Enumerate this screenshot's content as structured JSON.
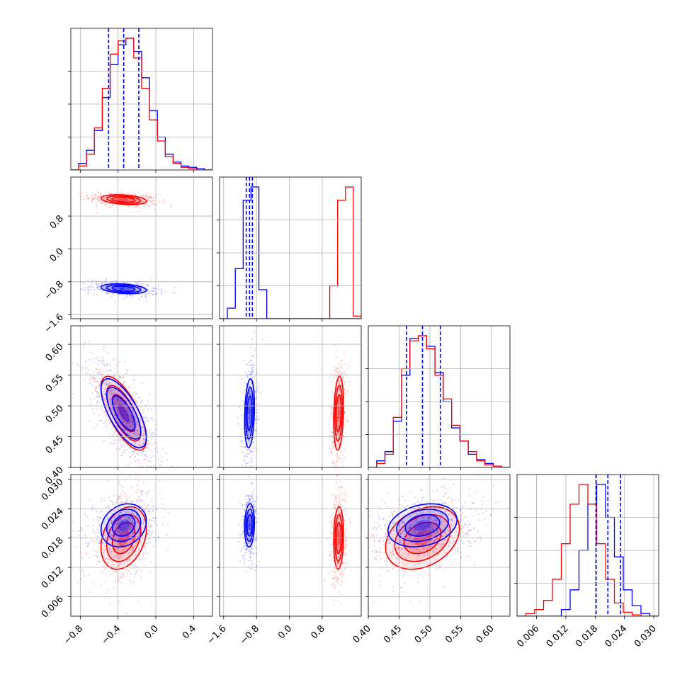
{
  "chart_data": {
    "type": "corner",
    "grid": true,
    "series_colors": [
      "#0000ff",
      "#ff0000"
    ],
    "quantile_color": "#0000ff",
    "parameters": [
      {
        "key": "p1",
        "range": [
          -0.9,
          0.6
        ],
        "ticks": [
          -0.8,
          -0.4,
          0.0,
          0.4
        ],
        "tick_labels": [
          "−0.8",
          "−0.4",
          "0.0",
          "0.4"
        ],
        "quantiles": [
          -0.5,
          -0.34,
          -0.18
        ]
      },
      {
        "key": "p2",
        "range": [
          -1.7,
          1.75
        ],
        "ticks": [
          -1.6,
          -0.8,
          0.0,
          0.8
        ],
        "tick_labels": [
          "−1.6",
          "−0.8",
          "0.0",
          "0.8"
        ],
        "quantiles": [
          -1.05,
          -0.97,
          -0.9
        ]
      },
      {
        "key": "p3",
        "range": [
          0.4,
          0.63
        ],
        "ticks": [
          0.4,
          0.45,
          0.5,
          0.55,
          0.6
        ],
        "tick_labels": [
          "0.40",
          "0.45",
          "0.50",
          "0.55",
          "0.60"
        ],
        "quantiles": [
          0.462,
          0.488,
          0.517
        ]
      },
      {
        "key": "p4",
        "range": [
          0.002,
          0.031
        ],
        "ticks": [
          0.006,
          0.012,
          0.018,
          0.024,
          0.03
        ],
        "tick_labels": [
          "0.006",
          "0.012",
          "0.018",
          "0.024",
          "0.030"
        ],
        "quantiles": [
          0.0182,
          0.0206,
          0.0232
        ]
      }
    ],
    "series": [
      {
        "color": "#0000ff",
        "centers": [
          -0.34,
          -0.97,
          0.488,
          0.0206
        ],
        "sd": [
          0.12,
          0.06,
          0.028,
          0.0022
        ],
        "corr": [
          [
            1,
            -0.3,
            -0.7,
            0.2
          ],
          [
            -0.3,
            1,
            0.2,
            0.1
          ],
          [
            -0.7,
            0.2,
            1,
            0.25
          ],
          [
            0.2,
            0.1,
            0.25,
            1
          ]
        ],
        "histograms": [
          [
            0,
            0.05,
            0.15,
            0.3,
            0.55,
            0.8,
            0.95,
            1.0,
            0.9,
            0.7,
            0.45,
            0.25,
            0.12,
            0.06,
            0.03,
            0.02,
            0.01,
            0
          ],
          [
            0,
            0.08,
            0.38,
            0.9,
            1.0,
            0.22,
            0,
            0,
            0,
            0,
            0,
            0,
            0,
            0,
            0,
            0,
            0,
            0
          ],
          [
            0,
            0.05,
            0.12,
            0.35,
            0.7,
            0.98,
            1.0,
            0.92,
            0.72,
            0.5,
            0.3,
            0.2,
            0.1,
            0.06,
            0.03,
            0.01,
            0
          ],
          [
            0,
            0,
            0,
            0,
            0,
            0.05,
            0.2,
            0.5,
            0.85,
            1.0,
            0.75,
            0.45,
            0.2,
            0.08,
            0.02,
            0
          ]
        ]
      },
      {
        "color": "#ff0000",
        "centers": [
          -0.34,
          1.2,
          0.488,
          0.018
        ],
        "sd": [
          0.12,
          0.06,
          0.03,
          0.0032
        ],
        "corr": [
          [
            1,
            -0.3,
            -0.7,
            0.3
          ],
          [
            -0.3,
            1,
            0.2,
            0.1
          ],
          [
            -0.7,
            0.2,
            1,
            0.3
          ],
          [
            0.3,
            0.1,
            0.3,
            1
          ]
        ],
        "histograms": [
          [
            0,
            0.03,
            0.12,
            0.32,
            0.62,
            0.88,
            0.98,
            1.0,
            0.85,
            0.62,
            0.38,
            0.22,
            0.1,
            0.05,
            0.02,
            0.01,
            0,
            0
          ],
          [
            0,
            0,
            0,
            0,
            0,
            0,
            0,
            0,
            0,
            0,
            0,
            0,
            0,
            0,
            0.25,
            0.9,
            1.0,
            0.02
          ],
          [
            0,
            0.03,
            0.1,
            0.38,
            0.75,
            0.96,
            1.0,
            0.9,
            0.7,
            0.52,
            0.32,
            0.2,
            0.12,
            0.05,
            0.02,
            0.01,
            0
          ],
          [
            0,
            0.02,
            0.05,
            0.12,
            0.28,
            0.55,
            0.85,
            1.0,
            0.85,
            0.55,
            0.28,
            0.1,
            0.03,
            0.01,
            0,
            0
          ]
        ]
      }
    ]
  }
}
